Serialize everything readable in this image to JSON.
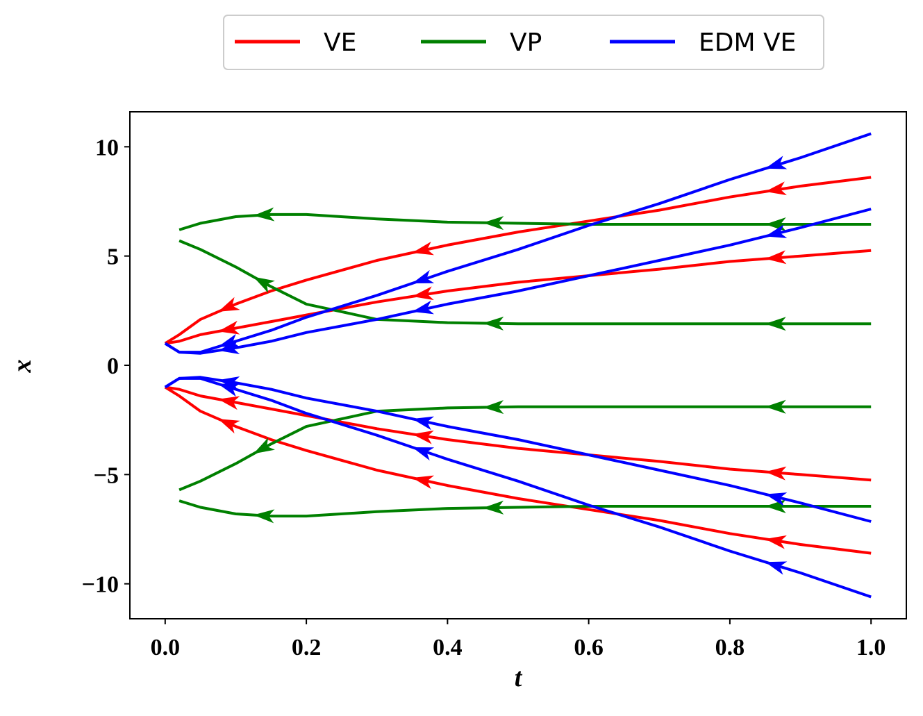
{
  "chart_data": {
    "type": "line",
    "x_label": "t",
    "y_label": "x",
    "xlim": [
      -0.05,
      1.05
    ],
    "ylim": [
      -11.6,
      11.6
    ],
    "xticks": [
      {
        "value": 0,
        "label": "0.0"
      },
      0.2,
      0.4,
      0.6,
      0.8,
      {
        "value": 1,
        "label": "1.0"
      }
    ],
    "yticks": [
      {
        "value": -10,
        "label": "−10"
      },
      {
        "value": -5,
        "label": "−5"
      },
      0,
      5,
      10
    ],
    "grid": false,
    "legend": "top-center-outside",
    "x": [
      0,
      0.02,
      0.05,
      0.1,
      0.15,
      0.2,
      0.3,
      0.4,
      0.5,
      0.6,
      0.7,
      0.8,
      0.9,
      1.0
    ],
    "series": [
      {
        "name": "VE",
        "color": "#ff0000",
        "trajectories": [
          [
            1.0,
            1.4,
            2.1,
            2.8,
            3.4,
            3.9,
            4.8,
            5.5,
            6.1,
            6.6,
            7.1,
            7.7,
            8.2,
            8.6
          ],
          [
            1.0,
            1.1,
            1.4,
            1.7,
            2.0,
            2.3,
            2.9,
            3.4,
            3.8,
            4.1,
            4.4,
            4.75,
            5.0,
            5.25
          ],
          [
            -1.0,
            -1.1,
            -1.4,
            -1.7,
            -2.0,
            -2.3,
            -2.9,
            -3.4,
            -3.8,
            -4.1,
            -4.4,
            -4.75,
            -5.0,
            -5.25
          ],
          [
            -1.0,
            -1.4,
            -2.1,
            -2.8,
            -3.4,
            -3.9,
            -4.8,
            -5.5,
            -6.1,
            -6.6,
            -7.1,
            -7.7,
            -8.2,
            -8.6
          ]
        ]
      },
      {
        "name": "VP",
        "color": "#008000",
        "trajectories": [
          [
            null,
            6.2,
            6.5,
            6.8,
            6.9,
            6.9,
            6.7,
            6.55,
            6.5,
            6.45,
            6.45,
            6.45,
            6.45,
            6.45
          ],
          [
            null,
            5.7,
            5.3,
            4.5,
            3.6,
            2.8,
            2.1,
            1.95,
            1.9,
            1.9,
            1.9,
            1.9,
            1.9,
            1.9
          ],
          [
            null,
            -5.7,
            -5.3,
            -4.5,
            -3.6,
            -2.8,
            -2.1,
            -1.95,
            -1.9,
            -1.9,
            -1.9,
            -1.9,
            -1.9,
            -1.9
          ],
          [
            null,
            -6.2,
            -6.5,
            -6.8,
            -6.9,
            -6.9,
            -6.7,
            -6.55,
            -6.5,
            -6.45,
            -6.45,
            -6.45,
            -6.45,
            -6.45
          ]
        ]
      },
      {
        "name": "EDM VE",
        "color": "#0000ff",
        "trajectories": [
          [
            1.0,
            0.6,
            0.6,
            1.1,
            1.6,
            2.2,
            3.2,
            4.3,
            5.3,
            6.4,
            7.4,
            8.5,
            9.5,
            10.6
          ],
          [
            1.0,
            0.6,
            0.55,
            0.8,
            1.1,
            1.5,
            2.1,
            2.8,
            3.4,
            4.1,
            4.8,
            5.5,
            6.3,
            7.15
          ],
          [
            -1.0,
            -0.6,
            -0.55,
            -0.8,
            -1.1,
            -1.5,
            -2.1,
            -2.8,
            -3.4,
            -4.1,
            -4.8,
            -5.5,
            -6.3,
            -7.15
          ],
          [
            -1.0,
            -0.6,
            -0.6,
            -1.1,
            -1.6,
            -2.2,
            -3.2,
            -4.3,
            -5.3,
            -6.4,
            -7.4,
            -8.5,
            -9.5,
            -10.6
          ]
        ]
      }
    ]
  }
}
